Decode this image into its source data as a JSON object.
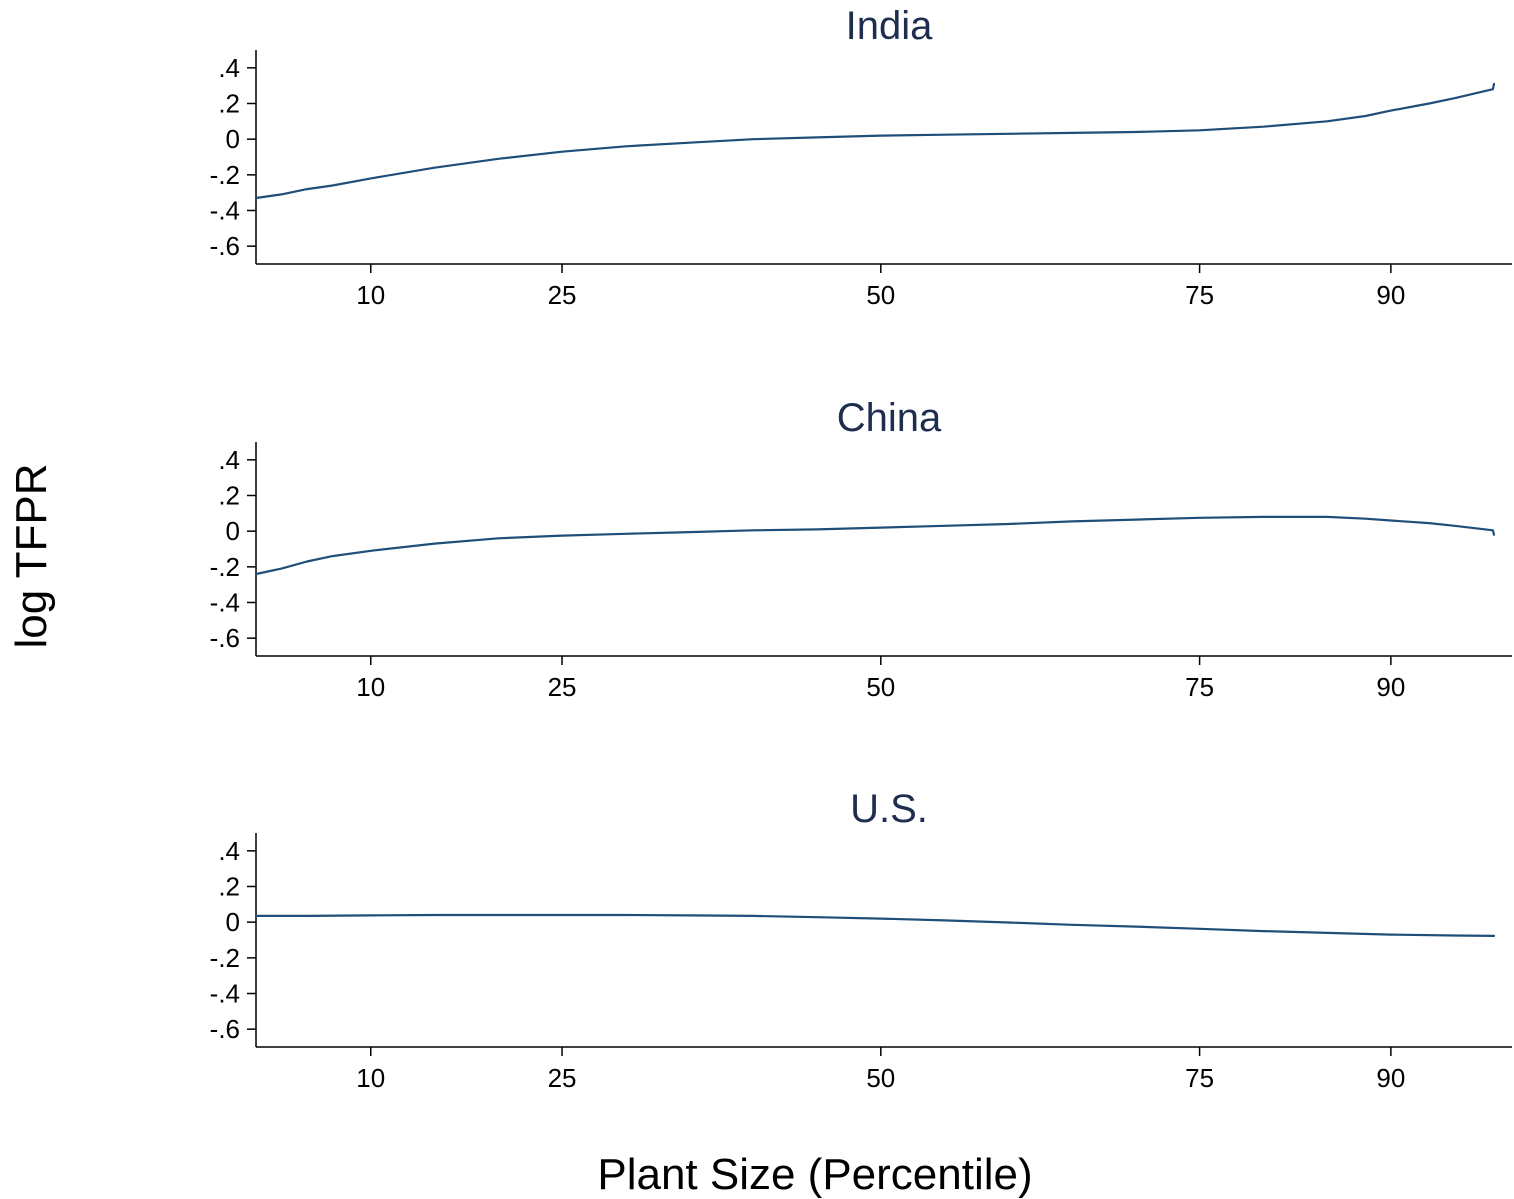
{
  "figure": {
    "xlabel": "Plant Size (Percentile)",
    "ylabel": "log TFPR",
    "line_color": "#1f4e79",
    "title_color": "#1f2d4f"
  },
  "chart_data": [
    {
      "type": "line",
      "title": "India",
      "xlim": [
        1,
        99.5
      ],
      "ylim": [
        -0.7,
        0.5
      ],
      "x_ticks": [
        10,
        25,
        50,
        75,
        90
      ],
      "x_tick_labels": [
        "10",
        "25",
        "50",
        "75",
        "90"
      ],
      "y_ticks": [
        0.4,
        0.2,
        0,
        -0.2,
        -0.4,
        -0.6
      ],
      "y_tick_labels": [
        ".4",
        ".2",
        "0",
        "-.2",
        "-.4",
        "-.6"
      ],
      "x": [
        1,
        3,
        5,
        7,
        10,
        15,
        20,
        25,
        30,
        35,
        40,
        45,
        50,
        55,
        60,
        65,
        70,
        75,
        80,
        85,
        88,
        90,
        93,
        95,
        98,
        100
      ],
      "values": [
        -0.33,
        -0.31,
        -0.28,
        -0.26,
        -0.22,
        -0.16,
        -0.11,
        -0.07,
        -0.04,
        -0.02,
        0.0,
        0.01,
        0.02,
        0.025,
        0.03,
        0.035,
        0.04,
        0.05,
        0.07,
        0.1,
        0.13,
        0.16,
        0.2,
        0.23,
        0.28,
        0.31
      ]
    },
    {
      "type": "line",
      "title": "China",
      "xlim": [
        1,
        99.5
      ],
      "ylim": [
        -0.7,
        0.5
      ],
      "x_ticks": [
        10,
        25,
        50,
        75,
        90
      ],
      "x_tick_labels": [
        "10",
        "25",
        "50",
        "75",
        "90"
      ],
      "y_ticks": [
        0.4,
        0.2,
        0,
        -0.2,
        -0.4,
        -0.6
      ],
      "y_tick_labels": [
        ".4",
        ".2",
        "0",
        "-.2",
        "-.4",
        "-.6"
      ],
      "x": [
        1,
        3,
        5,
        7,
        10,
        15,
        20,
        25,
        30,
        35,
        40,
        45,
        50,
        55,
        60,
        65,
        70,
        75,
        80,
        85,
        88,
        90,
        93,
        95,
        98,
        100
      ],
      "values": [
        -0.24,
        -0.21,
        -0.17,
        -0.14,
        -0.11,
        -0.07,
        -0.04,
        -0.025,
        -0.015,
        -0.005,
        0.005,
        0.01,
        0.02,
        0.03,
        0.04,
        0.055,
        0.065,
        0.075,
        0.08,
        0.08,
        0.07,
        0.06,
        0.045,
        0.03,
        0.005,
        -0.02
      ]
    },
    {
      "type": "line",
      "title": "U.S.",
      "xlim": [
        1,
        99.5
      ],
      "ylim": [
        -0.7,
        0.5
      ],
      "x_ticks": [
        10,
        25,
        50,
        75,
        90
      ],
      "x_tick_labels": [
        "10",
        "25",
        "50",
        "75",
        "90"
      ],
      "y_ticks": [
        0.4,
        0.2,
        0,
        -0.2,
        -0.4,
        -0.6
      ],
      "y_tick_labels": [
        ".4",
        ".2",
        "0",
        "-.2",
        "-.4",
        "-.6"
      ],
      "x": [
        1,
        5,
        10,
        15,
        20,
        25,
        30,
        35,
        40,
        45,
        50,
        55,
        60,
        65,
        70,
        75,
        80,
        85,
        90,
        95,
        100
      ],
      "values": [
        0.035,
        0.035,
        0.038,
        0.04,
        0.04,
        0.04,
        0.04,
        0.038,
        0.035,
        0.028,
        0.02,
        0.01,
        -0.002,
        -0.015,
        -0.025,
        -0.037,
        -0.05,
        -0.06,
        -0.07,
        -0.075,
        -0.077
      ]
    }
  ]
}
